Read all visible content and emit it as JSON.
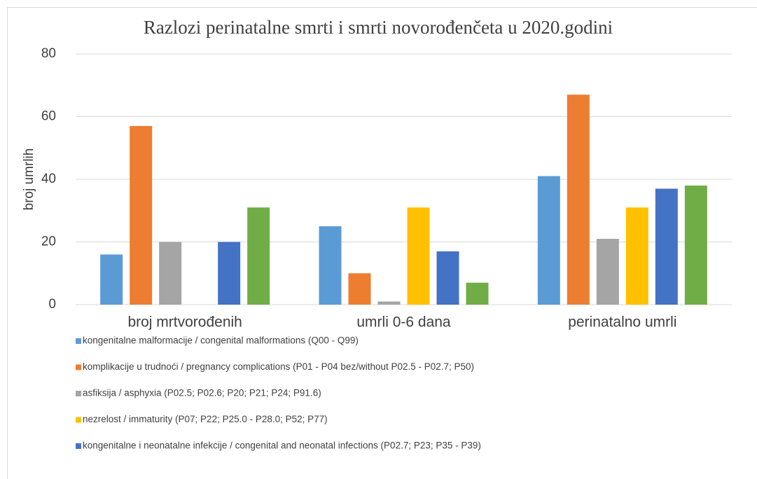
{
  "chart_data": {
    "type": "bar",
    "title": "Razlozi perinatalne smrti i smrti novorođenčeta u 2020.godini",
    "y_label": "broj umrlih",
    "categories": [
      "broj mrtvorođenih",
      "umrli 0-6 dana",
      "perinatalno umrli"
    ],
    "series": [
      {
        "name": "kongenitalne malformacije / congenital malformations (Q00 - Q99)",
        "color": "#5b9bd5",
        "values": [
          16,
          25,
          41
        ]
      },
      {
        "name": "komplikacije u trudnoći / pregnancy complications (P01 - P04 bez/without P02.5 - P02.7; P50)",
        "color": "#ed7d31",
        "values": [
          57,
          10,
          67
        ]
      },
      {
        "name": "asfiksija / asphyxia (P02.5; P02.6; P20; P21; P24; P91.6)",
        "color": "#a5a5a5",
        "values": [
          20,
          1,
          21
        ]
      },
      {
        "name": "nezrelost / immaturity (P07; P22; P25.0 - P28.0; P52; P77)",
        "color": "#ffc000",
        "values": [
          0,
          31,
          31
        ]
      },
      {
        "name": "kongenitalne i neonatalne infekcije / congenital and neonatal infections (P02.7; P23; P35 - P39)",
        "color": "#4472c4",
        "values": [
          20,
          17,
          37
        ]
      },
      {
        "color": "#70ad47",
        "values": [
          31,
          7,
          38
        ]
      }
    ],
    "ylim": [
      0,
      80
    ],
    "yticks": [
      0,
      20,
      40,
      60,
      80
    ],
    "grid": true
  }
}
